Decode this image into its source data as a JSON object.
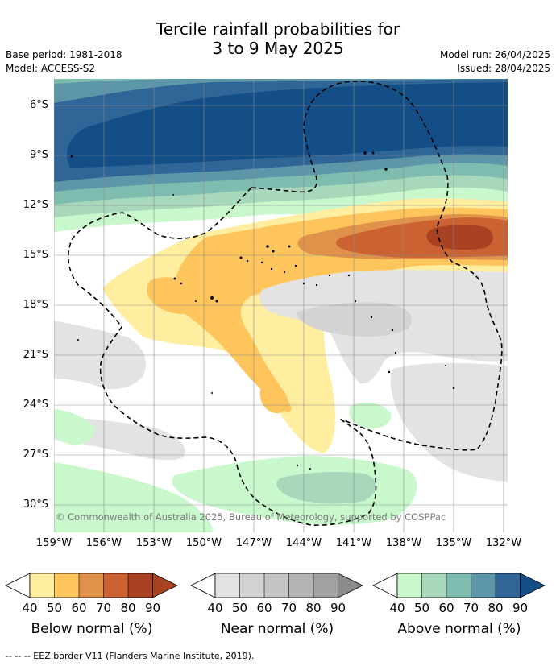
{
  "header": {
    "title_line1": "Tercile rainfall probabilities for",
    "title_line2": "3 to 9 May 2025",
    "base_period": "Base period: 1981-2018",
    "model": "Model: ACCESS-S2",
    "model_run": "Model run: 26/04/2025",
    "issued": "Issued: 28/04/2025"
  },
  "map": {
    "lat_labels": [
      "6°S",
      "9°S",
      "12°S",
      "15°S",
      "18°S",
      "21°S",
      "24°S",
      "27°S",
      "30°S"
    ],
    "lon_labels": [
      "159°W",
      "156°W",
      "153°W",
      "150°W",
      "147°W",
      "144°W",
      "141°W",
      "138°W",
      "135°W",
      "132°W"
    ],
    "copyright": "© Commonwealth of Australia 2025, Bureau of Meteorology, supported by COSPPac"
  },
  "legends": [
    {
      "title": "Below normal (%)",
      "ticks": [
        "40",
        "50",
        "60",
        "70",
        "80",
        "90"
      ],
      "colors": [
        "#ffeea0",
        "#fdc55c",
        "#e0924a",
        "#cb6231",
        "#a94223",
        "#a94223"
      ]
    },
    {
      "title": "Near normal (%)",
      "ticks": [
        "40",
        "50",
        "60",
        "70",
        "80",
        "90"
      ],
      "colors": [
        "#e3e3e3",
        "#d3d3d3",
        "#c4c4c4",
        "#b3b3b3",
        "#a1a1a1",
        "#8b8b8b"
      ]
    },
    {
      "title": "Above normal (%)",
      "ticks": [
        "40",
        "50",
        "60",
        "70",
        "80",
        "90"
      ],
      "colors": [
        "#c8f8cc",
        "#a8d8bc",
        "#7ebcb0",
        "#5c96a8",
        "#2f6597",
        "#134e86"
      ]
    }
  ],
  "footnote": "--  --  -- EEZ border V11 (Flanders Marine Institute, 2019)."
}
